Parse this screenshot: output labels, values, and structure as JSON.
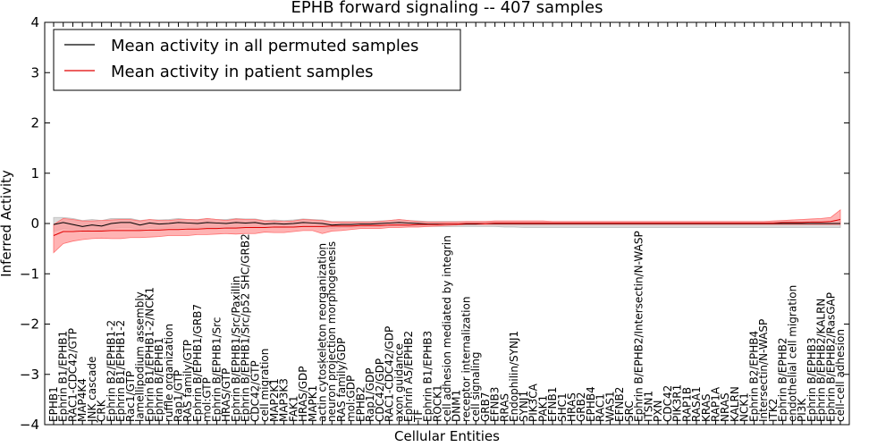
{
  "chart_data": {
    "type": "line",
    "title": "EPHB forward signaling -- 407 samples",
    "xlabel": "Cellular Entities",
    "ylabel": "Inferred Activity",
    "ylim": [
      -4,
      4
    ],
    "yticks": [
      -4,
      -3,
      -2,
      -1,
      0,
      1,
      2,
      3,
      4
    ],
    "legend_position": "top-left",
    "colors": {
      "permuted": "#000000",
      "patient": "#e00000",
      "patient_band": "#ff9a9a",
      "permuted_band": "#cccccc"
    },
    "categories": [
      "EPHB1",
      "Ephrin B1/EPHB1",
      "RAC1-CDC42/GTP",
      "MAP4K4",
      "JNK cascade",
      "CRK",
      "Ephrin B2/EPHB1-2",
      "Ephrin B1/EPHB1-2",
      "Rac1/GTP",
      "lamellipodium assembly",
      "Ephrin B1/EPHB1-2/NCK1",
      "Ephrin B/EPHB1",
      "ruffle organization",
      "Rap1/GTP",
      "RAS family/GTP",
      "Ephrin B/EPHB1/GRB7",
      "mol:GTP",
      "Ephrin B/EPHB1/Src",
      "HRAS/GTP",
      "Ephrin B/EPHB1/Src/Paxillin",
      "Ephrin B/EPHB1/Src/p52 SHC/GRB2",
      "CDC42/GTP",
      "cell migration",
      "MAP2K1",
      "MAP3K3",
      "FAK1",
      "HRAS/GDP",
      "MAPK1",
      "actin cytoskeleton reorganization",
      "neuron projection morphogenesis",
      "RAS family/GDP",
      "mol:GDP",
      "EPHB2",
      "Rap1/GDP",
      "CDC42/GDP",
      "RAC1-CDC42/GDP",
      "axon guidance",
      "Ephrin A5/EPHB2",
      "TF",
      "Ephrin B1/EPHB3",
      "ROCK1",
      "cell adhesion mediated by integrin",
      "DNM1",
      "receptor internalization",
      "cell signaling",
      "GRB7",
      "EFNB3",
      "RRAS",
      "Endophilin/SYNJ1",
      "SYNJ1",
      "PIK3CA",
      "PAK1",
      "EFNB1",
      "SHC1",
      "HRAS",
      "GRB2",
      "EPHB4",
      "RAC1",
      "WAS1",
      "EFNB2",
      "SRC",
      "Ephrin B/EPHB2/Intersectin/N-WASP",
      "ITSN1",
      "PXN",
      "CDC42",
      "PIK3R1",
      "RAP1B",
      "RASA1",
      "KRAS",
      "RAP1A",
      "NRAS",
      "KALRN",
      "NCK1",
      "Ephrin B2/EPHB4",
      "Intersectin/N-WASP",
      "ITK2",
      "Ephrin B/EPHB2",
      "endothelial cell migration",
      "PI3K",
      "Ephrin B/EPHB3",
      "Ephrin B/EPHB2/KALRN",
      "Ephrin B/EPHB2/RasGAP",
      "cell-cell adhesion"
    ],
    "series": [
      {
        "name": "Mean activity in all permuted samples",
        "values": [
          -0.02,
          0.02,
          -0.02,
          -0.06,
          -0.03,
          -0.05,
          0.0,
          0.02,
          0.02,
          -0.03,
          0.01,
          -0.01,
          0.0,
          0.02,
          0.01,
          0.0,
          0.02,
          0.01,
          0.0,
          0.02,
          0.01,
          0.02,
          -0.01,
          0.0,
          -0.01,
          0.0,
          0.02,
          0.01,
          0.0,
          -0.03,
          -0.02,
          -0.02,
          -0.01,
          -0.01,
          0.0,
          0.01,
          0.02,
          0.01,
          0.0,
          -0.01,
          -0.01,
          -0.01,
          -0.01,
          -0.01,
          -0.01,
          0.0,
          0.0,
          0.0,
          0.0,
          0.0,
          0.0,
          0.0,
          0.0,
          0.0,
          0.0,
          0.0,
          0.0,
          0.0,
          0.0,
          0.0,
          0.0,
          0.0,
          0.0,
          0.0,
          0.0,
          0.0,
          0.0,
          0.0,
          0.0,
          0.0,
          0.0,
          0.0,
          0.0,
          0.0,
          0.0,
          0.0,
          0.0,
          0.0,
          0.0,
          0.0,
          0.0,
          0.0,
          0.0
        ]
      },
      {
        "name": "Mean activity in patient samples",
        "values": [
          -0.24,
          -0.16,
          -0.16,
          -0.15,
          -0.15,
          -0.15,
          -0.14,
          -0.14,
          -0.14,
          -0.14,
          -0.13,
          -0.13,
          -0.12,
          -0.12,
          -0.11,
          -0.11,
          -0.1,
          -0.1,
          -0.09,
          -0.09,
          -0.08,
          -0.08,
          -0.08,
          -0.07,
          -0.07,
          -0.07,
          -0.06,
          -0.06,
          -0.06,
          -0.05,
          -0.05,
          -0.05,
          -0.04,
          -0.04,
          -0.04,
          -0.03,
          -0.03,
          -0.03,
          -0.02,
          -0.02,
          -0.02,
          -0.01,
          -0.01,
          0.0,
          0.0,
          0.0,
          0.01,
          0.01,
          0.01,
          0.01,
          0.01,
          0.01,
          0.01,
          0.01,
          0.01,
          0.01,
          0.01,
          0.01,
          0.01,
          0.01,
          0.01,
          0.01,
          0.01,
          0.01,
          0.01,
          0.01,
          0.01,
          0.01,
          0.01,
          0.01,
          0.01,
          0.01,
          0.01,
          0.01,
          0.01,
          0.01,
          0.02,
          0.02,
          0.02,
          0.03,
          0.03,
          0.04,
          0.08
        ]
      }
    ],
    "bands": {
      "patient_upper": [
        -0.02,
        0.1,
        0.08,
        0.05,
        0.05,
        0.06,
        0.07,
        0.08,
        0.08,
        0.05,
        0.08,
        0.06,
        0.06,
        0.08,
        0.08,
        0.07,
        0.1,
        0.08,
        0.06,
        0.09,
        0.08,
        0.08,
        0.05,
        0.05,
        0.04,
        0.05,
        0.08,
        0.07,
        0.06,
        0.03,
        0.03,
        0.03,
        0.03,
        0.03,
        0.04,
        0.06,
        0.08,
        0.06,
        0.04,
        0.03,
        0.03,
        0.03,
        0.03,
        0.04,
        0.04,
        0.04,
        0.05,
        0.05,
        0.05,
        0.05,
        0.05,
        0.05,
        0.04,
        0.04,
        0.04,
        0.04,
        0.04,
        0.04,
        0.04,
        0.04,
        0.04,
        0.04,
        0.04,
        0.04,
        0.04,
        0.04,
        0.04,
        0.04,
        0.04,
        0.04,
        0.04,
        0.04,
        0.04,
        0.04,
        0.04,
        0.05,
        0.06,
        0.07,
        0.08,
        0.09,
        0.1,
        0.12,
        0.27
      ],
      "patient_lower": [
        -0.58,
        -0.4,
        -0.35,
        -0.32,
        -0.3,
        -0.29,
        -0.3,
        -0.3,
        -0.28,
        -0.28,
        -0.27,
        -0.26,
        -0.24,
        -0.24,
        -0.24,
        -0.22,
        -0.22,
        -0.21,
        -0.2,
        -0.21,
        -0.2,
        -0.2,
        -0.17,
        -0.18,
        -0.18,
        -0.16,
        -0.14,
        -0.14,
        -0.2,
        -0.15,
        -0.14,
        -0.12,
        -0.1,
        -0.1,
        -0.1,
        -0.08,
        -0.08,
        -0.07,
        -0.07,
        -0.06,
        -0.05,
        -0.04,
        -0.03,
        -0.02,
        -0.02,
        -0.02,
        -0.02,
        -0.02,
        -0.02,
        -0.02,
        -0.02,
        -0.02,
        -0.02,
        -0.02,
        -0.02,
        -0.02,
        -0.02,
        -0.02,
        -0.02,
        -0.02,
        -0.02,
        -0.02,
        -0.02,
        -0.02,
        -0.02,
        -0.02,
        -0.02,
        -0.02,
        -0.02,
        -0.02,
        -0.02,
        -0.02,
        -0.02,
        -0.02,
        -0.02,
        -0.02,
        -0.02,
        -0.02,
        -0.02,
        -0.02,
        -0.02,
        -0.02,
        -0.02
      ],
      "permuted_upper": [
        0.12,
        0.12,
        0.1,
        0.06,
        0.08,
        0.06,
        0.1,
        0.1,
        0.1,
        0.06,
        0.08,
        0.07,
        0.08,
        0.1,
        0.08,
        0.08,
        0.1,
        0.08,
        0.08,
        0.1,
        0.09,
        0.09,
        0.06,
        0.07,
        0.06,
        0.07,
        0.09,
        0.08,
        0.07,
        0.04,
        0.04,
        0.04,
        0.04,
        0.04,
        0.05,
        0.06,
        0.08,
        0.06,
        0.05,
        0.04,
        0.04,
        0.04,
        0.04,
        0.04,
        0.04,
        0.04,
        0.04,
        0.04,
        0.04,
        0.04,
        0.04,
        0.04,
        0.04,
        0.04,
        0.04,
        0.04,
        0.04,
        0.04,
        0.04,
        0.04,
        0.04,
        0.04,
        0.04,
        0.04,
        0.04,
        0.04,
        0.04,
        0.04,
        0.04,
        0.04,
        0.04,
        0.04,
        0.04,
        0.04,
        0.04,
        0.04,
        0.04,
        0.04,
        0.04,
        0.04,
        0.04,
        0.04,
        0.04
      ],
      "permuted_lower": [
        -0.16,
        -0.1,
        -0.12,
        -0.16,
        -0.12,
        -0.14,
        -0.1,
        -0.08,
        -0.08,
        -0.12,
        -0.08,
        -0.1,
        -0.08,
        -0.08,
        -0.08,
        -0.08,
        -0.08,
        -0.08,
        -0.08,
        -0.08,
        -0.08,
        -0.07,
        -0.08,
        -0.08,
        -0.08,
        -0.07,
        -0.06,
        -0.06,
        -0.07,
        -0.1,
        -0.08,
        -0.08,
        -0.07,
        -0.06,
        -0.06,
        -0.05,
        -0.04,
        -0.05,
        -0.06,
        -0.06,
        -0.06,
        -0.06,
        -0.06,
        -0.06,
        -0.06,
        -0.06,
        -0.06,
        -0.07,
        -0.07,
        -0.08,
        -0.08,
        -0.08,
        -0.08,
        -0.08,
        -0.08,
        -0.08,
        -0.08,
        -0.08,
        -0.08,
        -0.08,
        -0.08,
        -0.08,
        -0.08,
        -0.08,
        -0.08,
        -0.08,
        -0.08,
        -0.08,
        -0.08,
        -0.08,
        -0.08,
        -0.08,
        -0.08,
        -0.08,
        -0.08,
        -0.08,
        -0.08,
        -0.08,
        -0.08,
        -0.08,
        -0.08,
        -0.08,
        -0.08
      ]
    }
  }
}
